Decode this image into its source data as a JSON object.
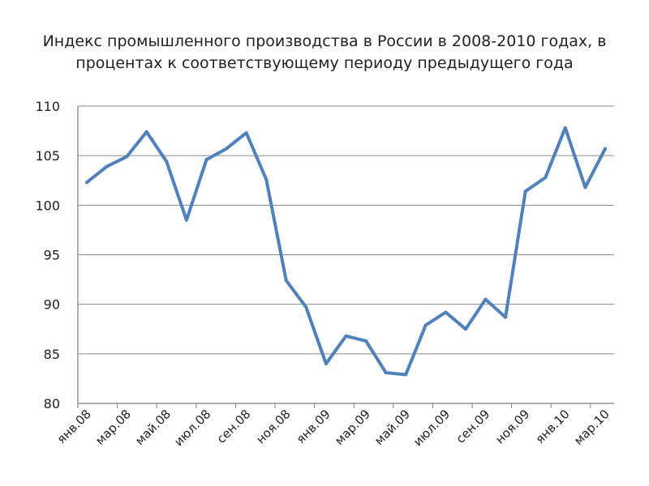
{
  "chart_data": {
    "type": "line",
    "title": "Индекс промышленного производства в России в 2008-2010 годах, в процентах к соответствующему периоду предыдущего года",
    "xlabel": "",
    "ylabel": "",
    "ylim": [
      80,
      110
    ],
    "yticks": [
      80,
      85,
      90,
      95,
      100,
      105,
      110
    ],
    "grid": true,
    "legend": "none",
    "x": [
      "янв.08",
      "фев.08",
      "мар.08",
      "апр.08",
      "май.08",
      "июн.08",
      "июл.08",
      "авг.08",
      "сен.08",
      "окт.08",
      "ноя.08",
      "дек.08",
      "янв.09",
      "фев.09",
      "мар.09",
      "апр.09",
      "май.09",
      "июн.09",
      "июл.09",
      "авг.09",
      "сен.09",
      "окт.09",
      "ноя.09",
      "дек.09",
      "янв.10",
      "фев.10",
      "мар.10"
    ],
    "xtick_labels": [
      "янв.08",
      "мар.08",
      "май.08",
      "июл.08",
      "сен.08",
      "ноя.08",
      "янв.09",
      "мар.09",
      "май.09",
      "июл.09",
      "сен.09",
      "ноя.09",
      "янв.10",
      "мар.10"
    ],
    "series": [
      {
        "color": "#4f81bd",
        "values": [
          102.3,
          103.9,
          104.9,
          107.4,
          104.4,
          98.5,
          104.6,
          105.7,
          107.3,
          102.6,
          92.4,
          89.7,
          84.0,
          86.8,
          86.3,
          83.1,
          82.9,
          87.9,
          89.2,
          87.5,
          90.5,
          88.7,
          101.4,
          102.8,
          107.8,
          101.8,
          105.7
        ]
      }
    ],
    "axis_color": "#808080",
    "grid_color": "#8a8a8a"
  }
}
